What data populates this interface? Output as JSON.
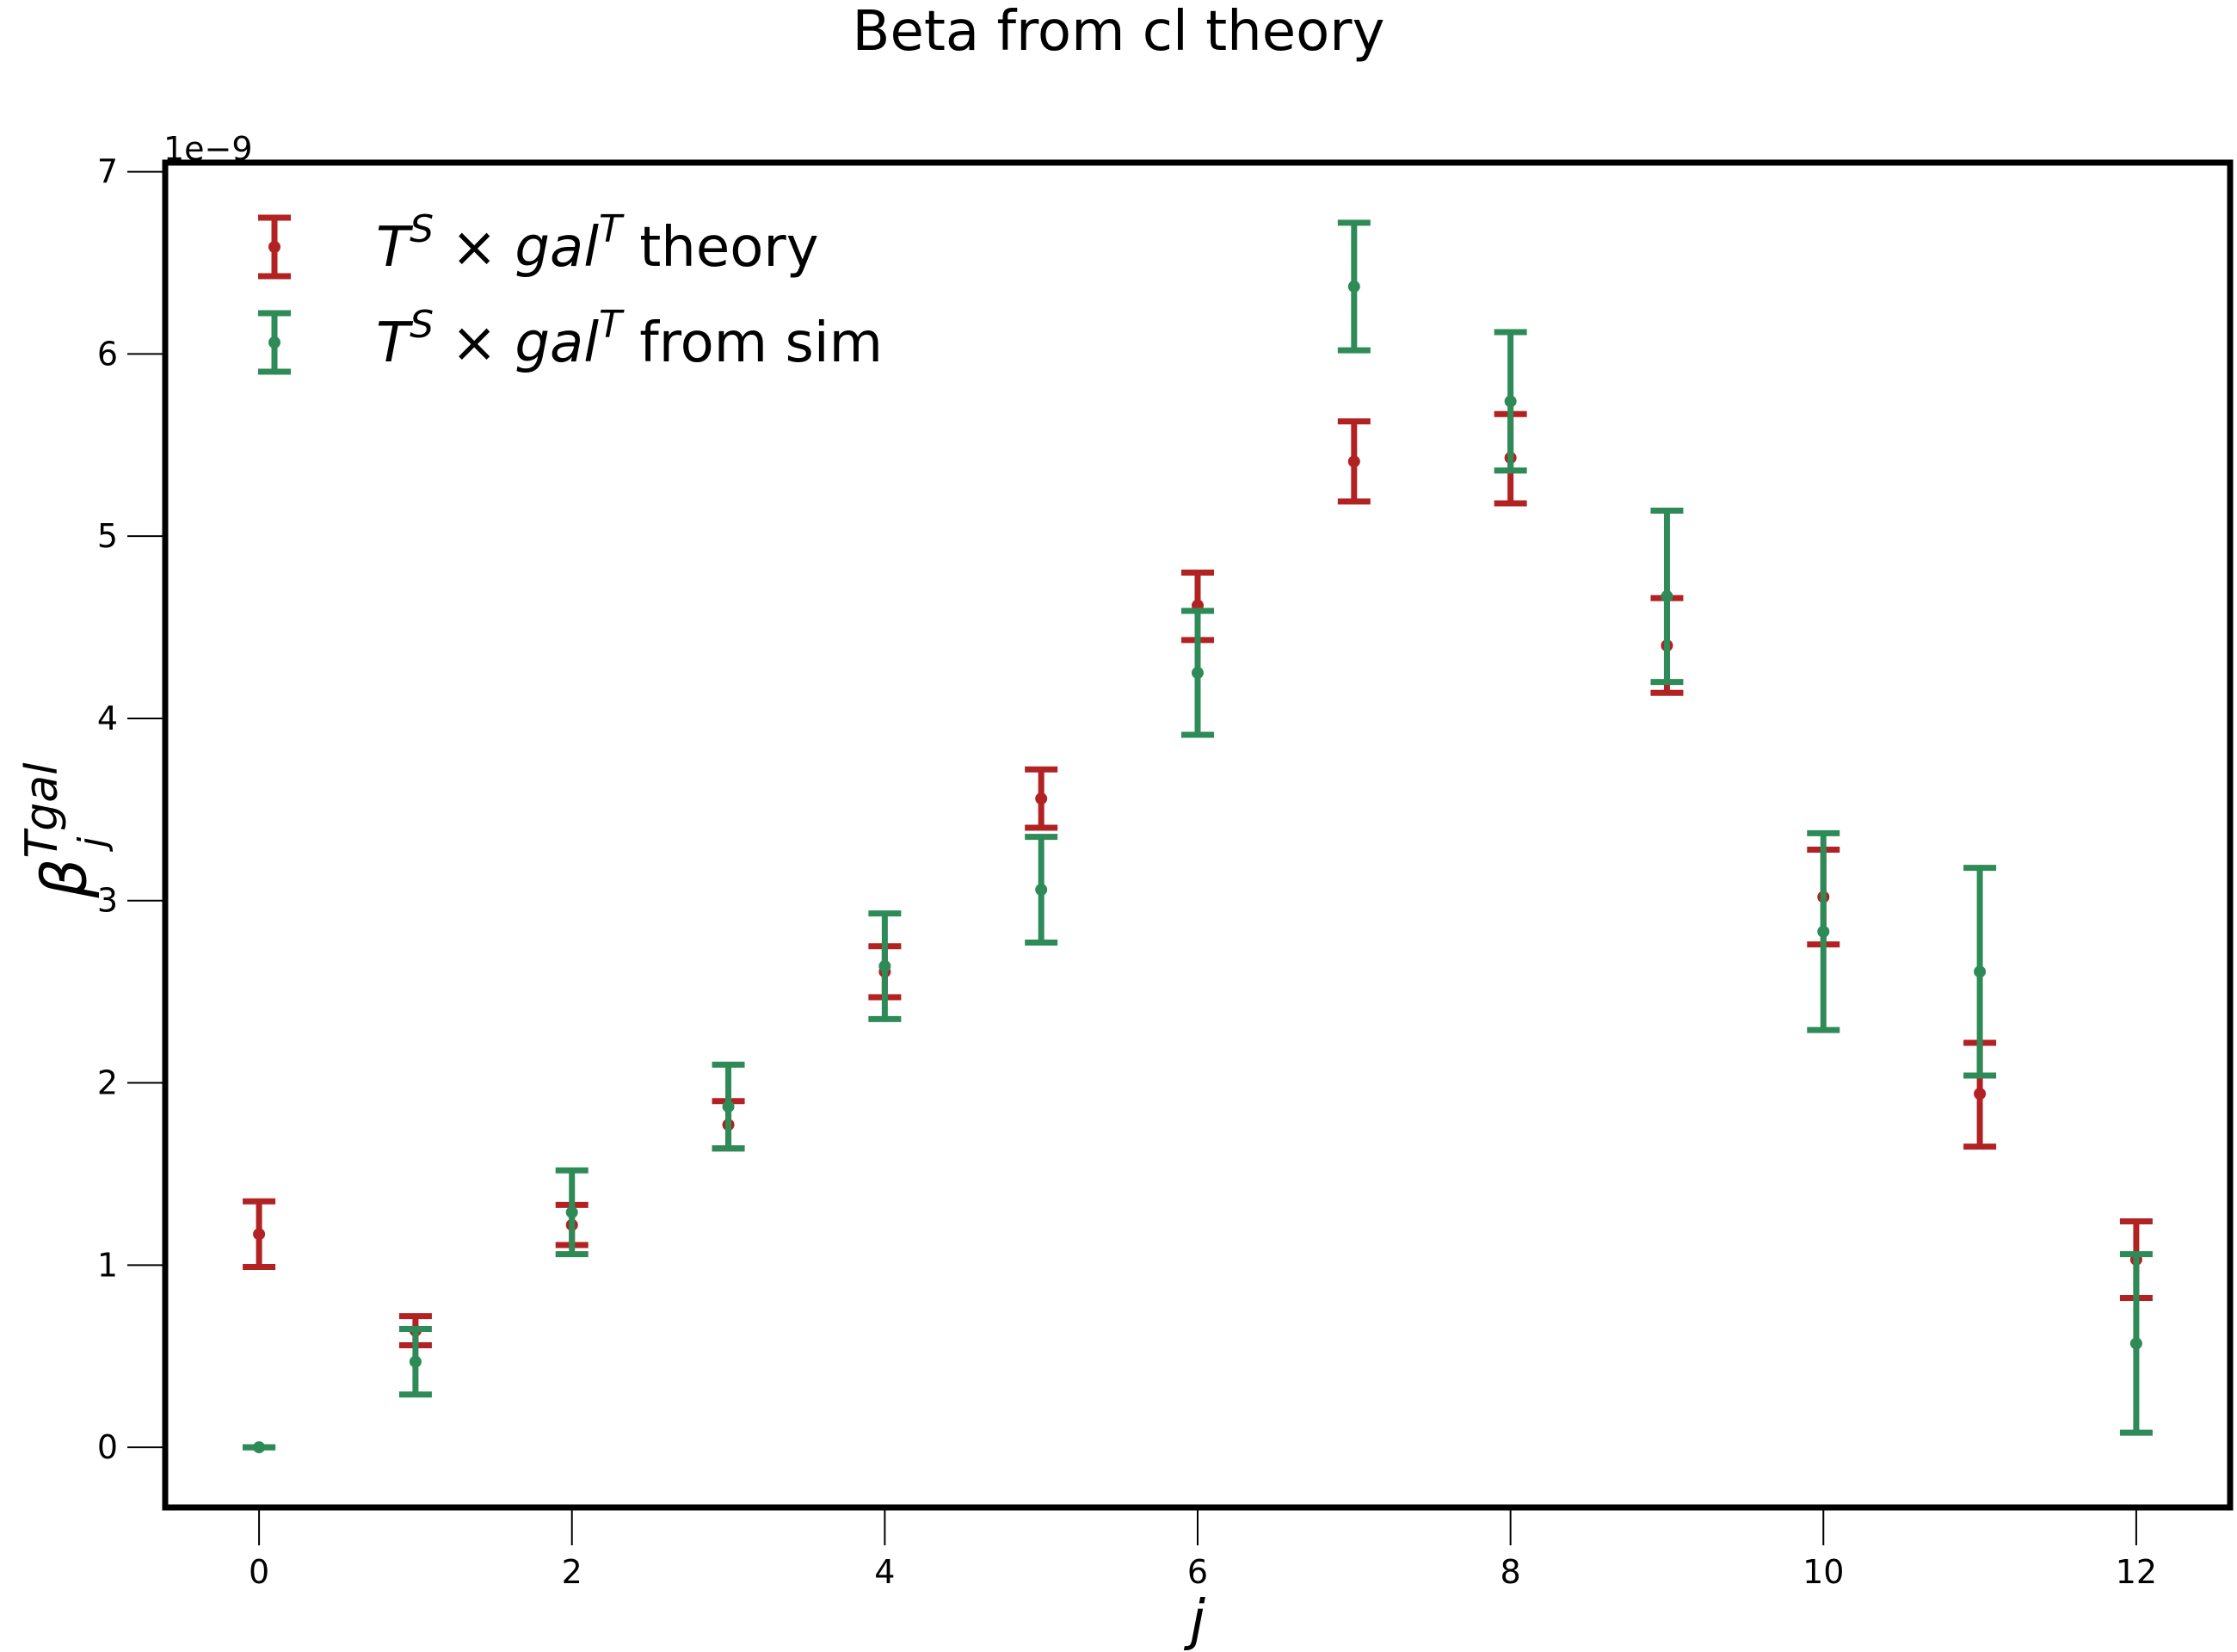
{
  "chart_data": {
    "type": "scatter",
    "title": "Beta from cl theory",
    "xlabel": "j",
    "ylabel_main": "β",
    "ylabel_sub": "j",
    "ylabel_sup": "Tgal",
    "y_offset_label": "1e−9",
    "xlim": [
      -0.6,
      12.6
    ],
    "ylim": [
      -0.33,
      7.05
    ],
    "x_ticks": [
      0,
      2,
      4,
      6,
      8,
      10,
      12
    ],
    "x_tick_labels": [
      "0",
      "2",
      "4",
      "6",
      "8",
      "10",
      "12"
    ],
    "y_ticks": [
      0,
      1,
      2,
      3,
      4,
      5,
      6,
      7
    ],
    "y_tick_labels": [
      "0",
      "1",
      "2",
      "3",
      "4",
      "5",
      "6",
      "7"
    ],
    "grid": false,
    "legend_position": "top-left",
    "series": [
      {
        "name_parts": [
          "T",
          "S",
          " × ",
          "gal",
          "T",
          " theory"
        ],
        "color": "#b22222",
        "x": [
          0,
          1,
          2,
          3,
          4,
          5,
          6,
          7,
          8,
          9,
          10,
          11,
          12
        ],
        "y": [
          1.17,
          0.64,
          1.22,
          1.77,
          2.61,
          3.56,
          4.62,
          5.41,
          5.43,
          4.4,
          3.02,
          1.94,
          1.03
        ],
        "yerr_low": [
          0.18,
          0.08,
          0.11,
          0.13,
          0.14,
          0.16,
          0.19,
          0.22,
          0.25,
          0.26,
          0.26,
          0.29,
          0.21
        ],
        "yerr_high": [
          0.18,
          0.08,
          0.11,
          0.13,
          0.14,
          0.16,
          0.18,
          0.22,
          0.24,
          0.26,
          0.26,
          0.28,
          0.21
        ]
      },
      {
        "name_parts": [
          "T",
          "S",
          " × ",
          "gal",
          "T",
          " from sim"
        ],
        "color": "#2e8b57",
        "x": [
          0,
          1,
          2,
          3,
          4,
          5,
          6,
          7,
          8,
          9,
          10,
          11,
          12
        ],
        "y": [
          0.0,
          0.47,
          1.29,
          1.87,
          2.64,
          3.06,
          4.25,
          6.37,
          5.74,
          4.67,
          2.83,
          2.61,
          0.57
        ],
        "yerr_low": [
          0.0,
          0.18,
          0.23,
          0.23,
          0.29,
          0.29,
          0.34,
          0.35,
          0.38,
          0.47,
          0.54,
          0.57,
          0.49
        ],
        "yerr_high": [
          0.0,
          0.18,
          0.23,
          0.23,
          0.29,
          0.29,
          0.34,
          0.35,
          0.38,
          0.47,
          0.54,
          0.57,
          0.49
        ]
      }
    ]
  }
}
